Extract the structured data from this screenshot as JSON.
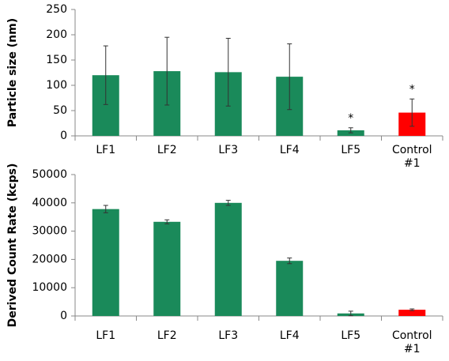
{
  "chart_data": [
    {
      "type": "bar",
      "y_label": "Particle size (nm)",
      "categories": [
        "LF1",
        "LF2",
        "LF3",
        "LF4",
        "LF5",
        "Control #1"
      ],
      "values": [
        120,
        128,
        126,
        117,
        11,
        46
      ],
      "errors": [
        58,
        67,
        67,
        65,
        5,
        27
      ],
      "colors": [
        "#1a8a5a",
        "#1a8a5a",
        "#1a8a5a",
        "#1a8a5a",
        "#1a8a5a",
        "#ff0000"
      ],
      "annotations": [
        null,
        null,
        null,
        null,
        "*",
        "*"
      ],
      "ylim": [
        0,
        250
      ],
      "yticks": [
        0,
        50,
        100,
        150,
        200,
        250
      ]
    },
    {
      "type": "bar",
      "y_label": "Derived Count Rate (kcps)",
      "categories": [
        "LF1",
        "LF2",
        "LF3",
        "LF4",
        "LF5",
        "Control #1"
      ],
      "values": [
        37800,
        33300,
        40000,
        19500,
        900,
        2200
      ],
      "errors": [
        1300,
        700,
        900,
        1000,
        800,
        300
      ],
      "colors": [
        "#1a8a5a",
        "#1a8a5a",
        "#1a8a5a",
        "#1a8a5a",
        "#1a8a5a",
        "#ff0000"
      ],
      "ylim": [
        0,
        50000
      ],
      "yticks": [
        0,
        10000,
        20000,
        30000,
        40000,
        50000
      ]
    }
  ]
}
